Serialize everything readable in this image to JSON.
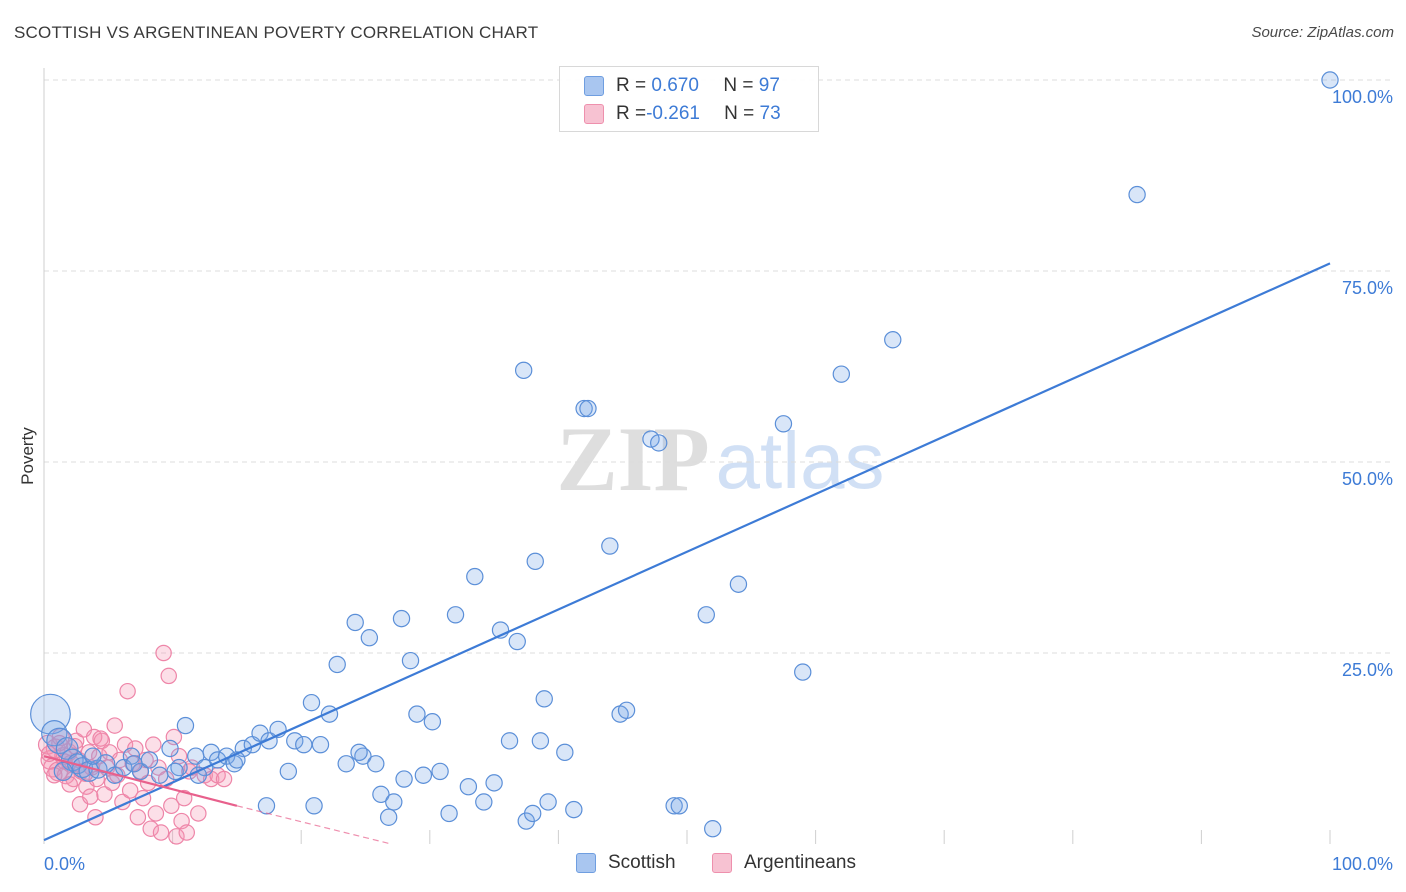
{
  "title": "SCOTTISH VS ARGENTINEAN POVERTY CORRELATION CHART",
  "source": "Source: ZipAtlas.com",
  "watermark": {
    "zip": "ZIP",
    "atlas": "atlas"
  },
  "colors": {
    "blue": "#3d7bd6",
    "blue_fill": "rgba(120,165,230,0.28)",
    "blue_stroke": "#5b8fd8",
    "pink": "#e8608c",
    "pink_fill": "rgba(245,150,180,0.30)",
    "pink_stroke": "#ee85a8",
    "grid": "#dcdcdc",
    "axis_text": "#3d7bd6"
  },
  "legend": {
    "rows": [
      {
        "r_label": "R = ",
        "r_value": "0.670",
        "n_label": "N = ",
        "n_value": "97",
        "color": "#a9c6f0",
        "border": "#6f9ee0"
      },
      {
        "r_label": "R = ",
        "r_value": "-0.261",
        "n_label": "N = ",
        "n_value": "73",
        "color": "#f7c2d2",
        "border": "#ee90ad"
      }
    ]
  },
  "bottom_legend": [
    {
      "label": "Scottish",
      "color": "#a9c6f0",
      "border": "#6f9ee0"
    },
    {
      "label": "Argentineans",
      "color": "#f7c2d2",
      "border": "#ee90ad"
    }
  ],
  "chart_data": {
    "type": "scatter",
    "title": "SCOTTISH VS ARGENTINEAN POVERTY CORRELATION CHART",
    "xlabel": "",
    "ylabel": "Poverty",
    "xlim": [
      0,
      100
    ],
    "ylim": [
      0,
      100
    ],
    "x_tick_labels": [
      {
        "value": 0,
        "label": "0.0%"
      },
      {
        "value": 100,
        "label": "100.0%"
      }
    ],
    "y_tick_labels": [
      {
        "value": 25,
        "label": "25.0%"
      },
      {
        "value": 50,
        "label": "50.0%"
      },
      {
        "value": 75,
        "label": "75.0%"
      },
      {
        "value": 100,
        "label": "100.0%"
      }
    ],
    "grid": true,
    "series": [
      {
        "name": "Scottish",
        "color": "#5b8fd8",
        "trend": {
          "x": [
            0,
            100
          ],
          "y": [
            0.5,
            76.0
          ],
          "dashed_extension": false
        },
        "points": [
          [
            0.5,
            17.0,
            22
          ],
          [
            0.8,
            14.5,
            14
          ],
          [
            1.2,
            13.5,
            14
          ],
          [
            1.8,
            12.5,
            12
          ],
          [
            2.2,
            11.0,
            12
          ],
          [
            2.6,
            10.5,
            11
          ],
          [
            3.0,
            10.0,
            11
          ],
          [
            3.5,
            9.5,
            11
          ],
          [
            4.2,
            9.8,
            10
          ],
          [
            4.8,
            10.5,
            10
          ],
          [
            5.5,
            9.0,
            9
          ],
          [
            6.2,
            10.0,
            9
          ],
          [
            6.8,
            11.5,
            9
          ],
          [
            7.5,
            9.5,
            9
          ],
          [
            8.2,
            11.0,
            9
          ],
          [
            9.0,
            9.0,
            9
          ],
          [
            9.8,
            12.5,
            9
          ],
          [
            10.5,
            10.0,
            9
          ],
          [
            11.0,
            15.5,
            9
          ],
          [
            11.8,
            11.5,
            9
          ],
          [
            12.5,
            10.0,
            9
          ],
          [
            13.0,
            12.0,
            9
          ],
          [
            13.5,
            11.0,
            9
          ],
          [
            14.2,
            11.5,
            9
          ],
          [
            14.8,
            10.5,
            9
          ],
          [
            15.5,
            12.5,
            9
          ],
          [
            16.2,
            13.0,
            9
          ],
          [
            16.8,
            14.5,
            9
          ],
          [
            17.5,
            13.5,
            9
          ],
          [
            18.2,
            15.0,
            9
          ],
          [
            19.0,
            9.5,
            9
          ],
          [
            19.5,
            13.5,
            9
          ],
          [
            20.2,
            13.0,
            9
          ],
          [
            20.8,
            18.5,
            9
          ],
          [
            21.5,
            13.0,
            9
          ],
          [
            22.2,
            17.0,
            9
          ],
          [
            22.8,
            23.5,
            9
          ],
          [
            23.5,
            10.5,
            9
          ],
          [
            24.2,
            29.0,
            9
          ],
          [
            24.8,
            11.5,
            9
          ],
          [
            25.3,
            27.0,
            9
          ],
          [
            25.8,
            10.5,
            9
          ],
          [
            26.2,
            6.5,
            9
          ],
          [
            26.8,
            3.5,
            9
          ],
          [
            27.2,
            5.5,
            9
          ],
          [
            27.8,
            29.5,
            9
          ],
          [
            28.5,
            24.0,
            9
          ],
          [
            29.0,
            17.0,
            9
          ],
          [
            29.5,
            9.0,
            9
          ],
          [
            30.2,
            16.0,
            9
          ],
          [
            30.8,
            9.5,
            9
          ],
          [
            31.5,
            4.0,
            9
          ],
          [
            32.0,
            30.0,
            9
          ],
          [
            33.0,
            7.5,
            9
          ],
          [
            33.5,
            35.0,
            9
          ],
          [
            34.2,
            5.5,
            9
          ],
          [
            35.0,
            8.0,
            9
          ],
          [
            35.5,
            28.0,
            9
          ],
          [
            36.2,
            13.5,
            9
          ],
          [
            36.8,
            26.5,
            9
          ],
          [
            37.5,
            3.0,
            9
          ],
          [
            38.0,
            4.0,
            9
          ],
          [
            37.3,
            62.0,
            9
          ],
          [
            38.2,
            37.0,
            9
          ],
          [
            38.6,
            13.5,
            9
          ],
          [
            38.9,
            19.0,
            9
          ],
          [
            39.2,
            5.5,
            9
          ],
          [
            40.5,
            12.0,
            9
          ],
          [
            41.2,
            4.5,
            9
          ],
          [
            42.0,
            57.0,
            9
          ],
          [
            42.3,
            57.0,
            9
          ],
          [
            44.0,
            39.0,
            9
          ],
          [
            44.8,
            17.0,
            9
          ],
          [
            45.3,
            17.5,
            9
          ],
          [
            47.2,
            53.0,
            9
          ],
          [
            47.8,
            52.5,
            9
          ],
          [
            49.0,
            5.0,
            9
          ],
          [
            49.4,
            5.0,
            9
          ],
          [
            51.5,
            30.0,
            9
          ],
          [
            52.0,
            2.0,
            9
          ],
          [
            54.0,
            34.0,
            9
          ],
          [
            57.5,
            55.0,
            9
          ],
          [
            59.0,
            22.5,
            9
          ],
          [
            62.0,
            61.5,
            9
          ],
          [
            66.0,
            66.0,
            9
          ],
          [
            85.0,
            85.0,
            9
          ],
          [
            100.0,
            100.0,
            9
          ],
          [
            1.5,
            9.5,
            10
          ],
          [
            7.0,
            10.5,
            9
          ],
          [
            12.0,
            9.0,
            9
          ],
          [
            15.0,
            11.0,
            9
          ],
          [
            17.3,
            5.0,
            9
          ],
          [
            21.0,
            5.0,
            9
          ],
          [
            24.5,
            12.0,
            9
          ],
          [
            28.0,
            8.5,
            9
          ],
          [
            3.8,
            11.5,
            9
          ],
          [
            10.2,
            9.5,
            9
          ]
        ]
      },
      {
        "name": "Argentineans",
        "color": "#ee85a8",
        "trend": {
          "x": [
            0,
            15
          ],
          "y": [
            11.5,
            5.0
          ],
          "dash_to": [
            27,
            0.0
          ]
        },
        "points": [
          [
            0.3,
            13.0,
            11
          ],
          [
            0.5,
            11.0,
            11
          ],
          [
            0.7,
            10.0,
            11
          ],
          [
            0.9,
            12.5,
            11
          ],
          [
            1.1,
            9.5,
            11
          ],
          [
            1.3,
            14.0,
            10
          ],
          [
            1.5,
            11.5,
            10
          ],
          [
            1.7,
            9.0,
            10
          ],
          [
            1.9,
            12.0,
            10
          ],
          [
            2.1,
            10.5,
            10
          ],
          [
            2.3,
            8.5,
            9
          ],
          [
            2.5,
            13.5,
            9
          ],
          [
            2.7,
            11.0,
            9
          ],
          [
            2.9,
            9.5,
            9
          ],
          [
            3.1,
            15.0,
            9
          ],
          [
            3.3,
            7.5,
            9
          ],
          [
            3.5,
            12.0,
            9
          ],
          [
            3.7,
            10.0,
            9
          ],
          [
            3.9,
            14.0,
            9
          ],
          [
            4.1,
            8.5,
            9
          ],
          [
            4.3,
            11.5,
            9
          ],
          [
            4.5,
            13.5,
            9
          ],
          [
            4.7,
            6.5,
            9
          ],
          [
            4.9,
            10.0,
            9
          ],
          [
            5.1,
            12.0,
            9
          ],
          [
            5.3,
            8.0,
            9
          ],
          [
            5.5,
            15.5,
            9
          ],
          [
            5.7,
            9.0,
            9
          ],
          [
            5.9,
            11.0,
            9
          ],
          [
            6.1,
            5.5,
            9
          ],
          [
            6.3,
            13.0,
            9
          ],
          [
            6.5,
            20.0,
            9
          ],
          [
            6.7,
            7.0,
            9
          ],
          [
            6.9,
            10.5,
            9
          ],
          [
            7.1,
            12.5,
            9
          ],
          [
            7.3,
            3.5,
            9
          ],
          [
            7.5,
            9.5,
            9
          ],
          [
            7.7,
            6.0,
            9
          ],
          [
            7.9,
            11.0,
            9
          ],
          [
            8.1,
            8.0,
            9
          ],
          [
            8.3,
            2.0,
            9
          ],
          [
            8.5,
            13.0,
            9
          ],
          [
            8.7,
            4.0,
            9
          ],
          [
            8.9,
            10.0,
            9
          ],
          [
            9.1,
            1.5,
            9
          ],
          [
            9.3,
            25.0,
            9
          ],
          [
            9.5,
            8.5,
            9
          ],
          [
            9.7,
            22.0,
            9
          ],
          [
            9.9,
            5.0,
            9
          ],
          [
            10.1,
            14.0,
            9
          ],
          [
            10.3,
            1.0,
            9
          ],
          [
            10.5,
            11.5,
            9
          ],
          [
            10.7,
            3.0,
            9
          ],
          [
            10.9,
            6.0,
            9
          ],
          [
            11.1,
            1.5,
            9
          ],
          [
            11.3,
            9.5,
            9
          ],
          [
            11.5,
            10.0,
            9
          ],
          [
            12.0,
            4.0,
            9
          ],
          [
            12.5,
            9.0,
            9
          ],
          [
            13.0,
            8.5,
            9
          ],
          [
            13.5,
            9.0,
            9
          ],
          [
            14.0,
            8.5,
            9
          ],
          [
            0.4,
            11.8,
            9
          ],
          [
            0.8,
            9.0,
            9
          ],
          [
            1.2,
            13.2,
            9
          ],
          [
            1.6,
            10.8,
            9
          ],
          [
            2.0,
            7.8,
            9
          ],
          [
            2.4,
            12.8,
            9
          ],
          [
            2.8,
            5.2,
            9
          ],
          [
            3.2,
            9.2,
            9
          ],
          [
            3.6,
            6.2,
            9
          ],
          [
            4.0,
            3.5,
            9
          ],
          [
            4.4,
            13.8,
            9
          ]
        ]
      }
    ]
  }
}
